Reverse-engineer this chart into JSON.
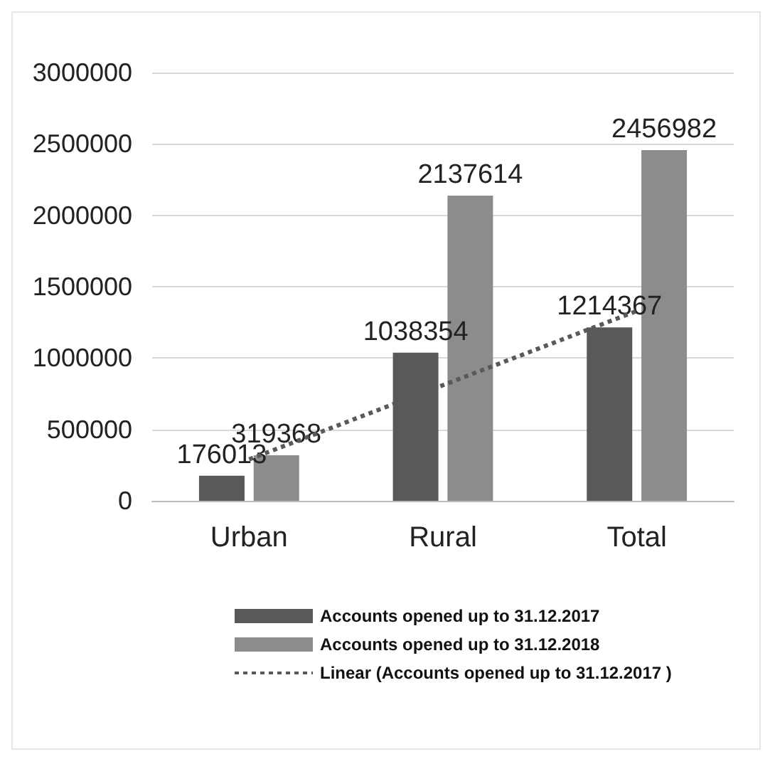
{
  "chart_data": {
    "type": "bar",
    "categories": [
      "Urban",
      "Rural",
      "Total"
    ],
    "series": [
      {
        "name": "Accounts opened up to 31.12.2017",
        "color": "#595959",
        "values": [
          176013,
          1038354,
          1214367
        ],
        "value_labels": [
          "176013",
          "1038354",
          "1214367"
        ]
      },
      {
        "name": "Accounts opened up to 31.12.2018",
        "color": "#8c8c8c",
        "values": [
          319368,
          2137614,
          2456982
        ],
        "value_labels": [
          "319368",
          "2137614",
          "2456982"
        ]
      },
      {
        "name": "Linear (Accounts opened up to 31.12.2017 )",
        "type": "line",
        "color": "#595959",
        "line_style": "dotted",
        "marker": "none",
        "x": [
          "Urban",
          "Rural",
          "Total"
        ],
        "values": [
          290000,
          810000,
          1330000
        ]
      }
    ],
    "ylim": [
      0,
      3000000
    ],
    "yticks": [
      0,
      500000,
      1000000,
      1500000,
      2000000,
      2500000,
      3000000
    ],
    "grid": "y",
    "legend": "bottom"
  }
}
